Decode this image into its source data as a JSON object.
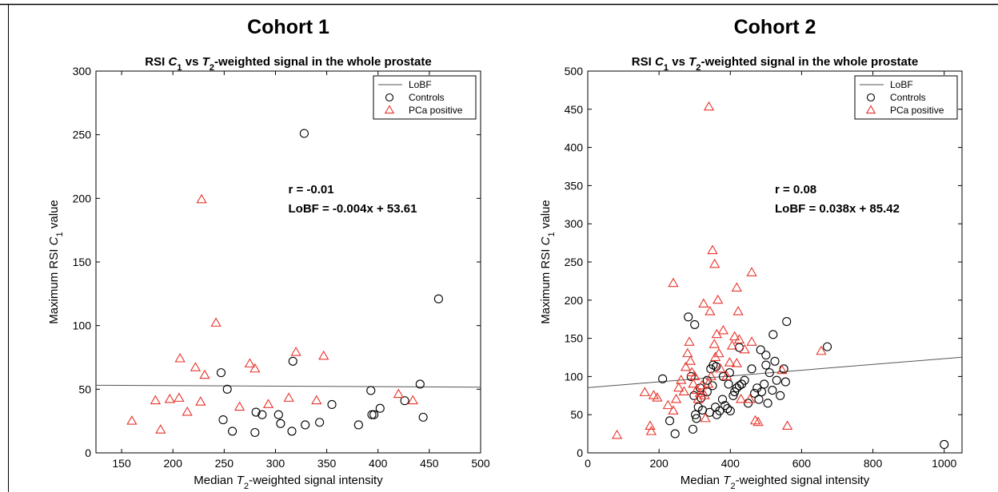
{
  "chart_data": [
    {
      "type": "scatter",
      "cohort_title": "Cohort 1",
      "title_parts": [
        "RSI ",
        "C",
        "1",
        " vs ",
        "T",
        "2",
        "-weighted signal in the whole prostate"
      ],
      "xlabel_parts": [
        "Median ",
        "T",
        "2",
        "-weighted signal intensity"
      ],
      "ylabel_parts": [
        "Maximum RSI ",
        "C",
        "1",
        " value"
      ],
      "xlim": [
        125,
        500
      ],
      "ylim": [
        0,
        300
      ],
      "xticks": [
        150,
        200,
        250,
        300,
        350,
        400,
        450,
        500
      ],
      "yticks": [
        0,
        50,
        100,
        150,
        200,
        250,
        300
      ],
      "grid": false,
      "legend_placement": "top-right",
      "legend": [
        "LoBF",
        "Controls",
        "PCa positive"
      ],
      "annotation_r": "r = -0.01",
      "annotation_lobf": "LoBF = -0.004x + 53.61",
      "lobf": {
        "slope": -0.004,
        "intercept": 53.61
      },
      "series": [
        {
          "name": "Controls",
          "marker": "circle",
          "color": "#000000",
          "points": [
            [
              328,
              251
            ],
            [
              459,
              121
            ],
            [
              317,
              72
            ],
            [
              441,
              54
            ],
            [
              253,
              50
            ],
            [
              393,
              49
            ],
            [
              247,
              63
            ],
            [
              249,
              26
            ],
            [
              258,
              17
            ],
            [
              281,
              32
            ],
            [
              287,
              30
            ],
            [
              303,
              30
            ],
            [
              305,
              23
            ],
            [
              280,
              16
            ],
            [
              316,
              17
            ],
            [
              329,
              22
            ],
            [
              343,
              24
            ],
            [
              355,
              38
            ],
            [
              381,
              22
            ],
            [
              394,
              30
            ],
            [
              396,
              30
            ],
            [
              402,
              35
            ],
            [
              426,
              41
            ],
            [
              444,
              28
            ]
          ]
        },
        {
          "name": "PCa positive",
          "marker": "triangle",
          "color": "#e8332a",
          "points": [
            [
              228,
              199
            ],
            [
              242,
              102
            ],
            [
              207,
              74
            ],
            [
              222,
              67
            ],
            [
              231,
              61
            ],
            [
              160,
              25
            ],
            [
              183,
              41
            ],
            [
              188,
              18
            ],
            [
              197,
              42
            ],
            [
              206,
              43
            ],
            [
              214,
              32
            ],
            [
              227,
              40
            ],
            [
              265,
              36
            ],
            [
              275,
              70
            ],
            [
              280,
              66
            ],
            [
              293,
              38
            ],
            [
              313,
              43
            ],
            [
              320,
              79
            ],
            [
              340,
              41
            ],
            [
              347,
              76
            ],
            [
              420,
              46
            ],
            [
              434,
              41
            ]
          ]
        }
      ]
    },
    {
      "type": "scatter",
      "cohort_title": "Cohort 2",
      "title_parts": [
        "RSI ",
        "C",
        "1",
        " vs ",
        "T",
        "2",
        "-weighted signal in the whole prostate"
      ],
      "xlabel_parts": [
        "Median ",
        "T",
        "2",
        "-weighted signal intensity"
      ],
      "ylabel_parts": [
        "Maximum RSI ",
        "C",
        "1",
        " value"
      ],
      "xlim": [
        0,
        1050
      ],
      "ylim": [
        0,
        500
      ],
      "xticks": [
        0,
        200,
        400,
        600,
        800,
        1000
      ],
      "yticks": [
        0,
        50,
        100,
        150,
        200,
        250,
        300,
        350,
        400,
        450,
        500
      ],
      "grid": false,
      "legend_placement": "top-right",
      "legend": [
        "LoBF",
        "Controls",
        "PCa positive"
      ],
      "annotation_r": "r = 0.08",
      "annotation_lobf": "LoBF = 0.038x + 85.42",
      "lobf": {
        "slope": 0.038,
        "intercept": 85.42
      },
      "series": [
        {
          "name": "Controls",
          "marker": "circle",
          "color": "#000000",
          "points": [
            [
              1000,
              11
            ],
            [
              672,
              139
            ],
            [
              558,
              172
            ],
            [
              520,
              155
            ],
            [
              485,
              135
            ],
            [
              500,
              128
            ],
            [
              425,
              138
            ],
            [
              398,
              105
            ],
            [
              360,
              113
            ],
            [
              300,
              168
            ],
            [
              282,
              178
            ],
            [
              290,
              100
            ],
            [
              210,
              97
            ],
            [
              230,
              42
            ],
            [
              245,
              25
            ],
            [
              295,
              31
            ],
            [
              302,
              50
            ],
            [
              305,
              45
            ],
            [
              310,
              60
            ],
            [
              318,
              72
            ],
            [
              322,
              56
            ],
            [
              335,
              80
            ],
            [
              342,
              53
            ],
            [
              350,
              88
            ],
            [
              358,
              60
            ],
            [
              362,
              50
            ],
            [
              370,
              55
            ],
            [
              378,
              70
            ],
            [
              385,
              62
            ],
            [
              392,
              58
            ],
            [
              400,
              55
            ],
            [
              408,
              75
            ],
            [
              412,
              80
            ],
            [
              418,
              85
            ],
            [
              425,
              88
            ],
            [
              432,
              90
            ],
            [
              440,
              95
            ],
            [
              450,
              65
            ],
            [
              460,
              110
            ],
            [
              468,
              78
            ],
            [
              475,
              85
            ],
            [
              480,
              70
            ],
            [
              488,
              80
            ],
            [
              495,
              90
            ],
            [
              500,
              115
            ],
            [
              505,
              65
            ],
            [
              510,
              105
            ],
            [
              518,
              82
            ],
            [
              525,
              120
            ],
            [
              530,
              95
            ],
            [
              540,
              75
            ],
            [
              550,
              110
            ],
            [
              555,
              93
            ],
            [
              380,
              100
            ],
            [
              395,
              90
            ],
            [
              298,
              75
            ],
            [
              315,
              85
            ],
            [
              335,
              95
            ],
            [
              345,
              110
            ],
            [
              352,
              115
            ]
          ]
        },
        {
          "name": "PCa positive",
          "marker": "triangle",
          "color": "#e8332a",
          "points": [
            [
              340,
              453
            ],
            [
              350,
              265
            ],
            [
              356,
              247
            ],
            [
              460,
              236
            ],
            [
              240,
              222
            ],
            [
              418,
              216
            ],
            [
              325,
              195
            ],
            [
              365,
              200
            ],
            [
              343,
              185
            ],
            [
              422,
              185
            ],
            [
              82,
              23
            ],
            [
              160,
              79
            ],
            [
              175,
              35
            ],
            [
              178,
              28
            ],
            [
              185,
              75
            ],
            [
              195,
              72
            ],
            [
              225,
              62
            ],
            [
              240,
              55
            ],
            [
              248,
              70
            ],
            [
              255,
              85
            ],
            [
              262,
              95
            ],
            [
              270,
              80
            ],
            [
              275,
              112
            ],
            [
              280,
              130
            ],
            [
              285,
              145
            ],
            [
              288,
              120
            ],
            [
              292,
              105
            ],
            [
              296,
              90
            ],
            [
              300,
              100
            ],
            [
              305,
              82
            ],
            [
              310,
              70
            ],
            [
              315,
              78
            ],
            [
              320,
              88
            ],
            [
              328,
              75
            ],
            [
              330,
              45
            ],
            [
              338,
              90
            ],
            [
              346,
              100
            ],
            [
              355,
              142
            ],
            [
              358,
              125
            ],
            [
              362,
              155
            ],
            [
              368,
              130
            ],
            [
              372,
              110
            ],
            [
              380,
              160
            ],
            [
              390,
              100
            ],
            [
              398,
              118
            ],
            [
              405,
              140
            ],
            [
              412,
              152
            ],
            [
              418,
              117
            ],
            [
              425,
              148
            ],
            [
              430,
              70
            ],
            [
              440,
              135
            ],
            [
              455,
              70
            ],
            [
              460,
              145
            ],
            [
              470,
              42
            ],
            [
              478,
              40
            ],
            [
              545,
              108
            ],
            [
              560,
              35
            ],
            [
              655,
              133
            ]
          ]
        }
      ]
    }
  ]
}
